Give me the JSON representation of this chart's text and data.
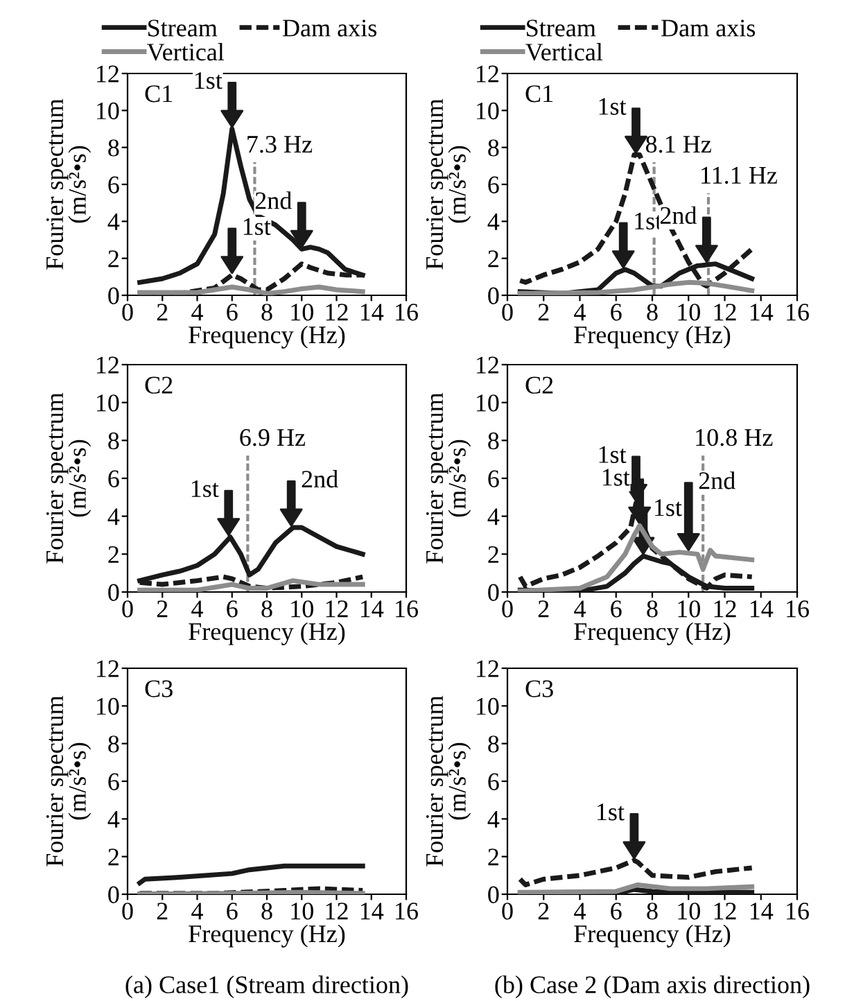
{
  "chart_data": [
    {
      "type": "line",
      "title": "C1",
      "xlabel": "Frequency (Hz)",
      "ylabel": "Fourier spectrum\n(m/s²•s)",
      "xlim": [
        0,
        16
      ],
      "xticks": [
        0,
        2,
        4,
        6,
        8,
        10,
        12,
        14,
        16
      ],
      "ylim": [
        0,
        12
      ],
      "yticks": [
        0,
        2,
        4,
        6,
        8,
        10,
        12
      ],
      "grid": false,
      "legend": "top",
      "marker": "none",
      "series": [
        {
          "name": "Stream",
          "color": "#1a1a1a",
          "line_style": "solid",
          "x": [
            0.7,
            2,
            3,
            4,
            5,
            5.5,
            6,
            6.5,
            7,
            7.5,
            8.5,
            9.5,
            10,
            10.5,
            11,
            11.5,
            12.5,
            13.5
          ],
          "values": [
            0.7,
            0.9,
            1.2,
            1.7,
            3.3,
            5.5,
            9.0,
            7.0,
            5.2,
            4.3,
            3.8,
            3.0,
            2.5,
            2.6,
            2.5,
            2.3,
            1.4,
            1.1
          ]
        },
        {
          "name": "Dam axis",
          "color": "#1a1a1a",
          "line_style": "dashed",
          "x": [
            0.7,
            3,
            5,
            6,
            6.5,
            7.5,
            8,
            9,
            10,
            10.5,
            11.5,
            12.5,
            13.5
          ],
          "values": [
            0.1,
            0.1,
            0.4,
            1.1,
            0.9,
            0.3,
            0.3,
            0.9,
            1.7,
            1.5,
            1.2,
            1.1,
            1.1
          ]
        },
        {
          "name": "Vertical",
          "color": "#8c8c8c",
          "line_style": "solid",
          "x": [
            0.7,
            4,
            6,
            7,
            8,
            9,
            10,
            11,
            12,
            13.5
          ],
          "values": [
            0.15,
            0.15,
            0.45,
            0.3,
            0.1,
            0.2,
            0.35,
            0.45,
            0.3,
            0.2
          ]
        }
      ],
      "ref_lines": [
        {
          "axis": "x",
          "value": 7.3,
          "label": "7.3 Hz",
          "color": "#8c8c8c",
          "line_style": "dashed"
        }
      ],
      "annotations": [
        {
          "text": "1st",
          "x": 6,
          "y": 9.0
        },
        {
          "text": "1st",
          "x": 6,
          "y": 1.1
        },
        {
          "text": "2nd",
          "x": 10,
          "y": 2.5
        }
      ]
    },
    {
      "type": "line",
      "title": "C1",
      "xlabel": "Frequency (Hz)",
      "ylabel": "Fourier spectrum\n(m/s²•s)",
      "xlim": [
        0,
        16
      ],
      "xticks": [
        0,
        2,
        4,
        6,
        8,
        10,
        12,
        14,
        16
      ],
      "ylim": [
        0,
        12
      ],
      "yticks": [
        0,
        2,
        4,
        6,
        8,
        10,
        12
      ],
      "grid": false,
      "legend": "top",
      "marker": "none",
      "series": [
        {
          "name": "Stream",
          "color": "#1a1a1a",
          "line_style": "solid",
          "x": [
            0.7,
            3,
            5,
            6,
            6.5,
            7,
            8,
            8.5,
            9.5,
            10.5,
            11.5,
            12.5,
            13.5
          ],
          "values": [
            0.2,
            0.1,
            0.3,
            1.2,
            1.4,
            1.2,
            0.5,
            0.5,
            1.2,
            1.6,
            1.7,
            1.3,
            0.9
          ]
        },
        {
          "name": "Dam axis",
          "color": "#1a1a1a",
          "line_style": "dashed",
          "x": [
            0.7,
            1,
            2,
            3,
            4,
            5,
            6,
            6.5,
            7,
            7.3,
            8,
            9,
            10,
            10.8,
            11,
            12,
            13.5
          ],
          "values": [
            0.8,
            0.7,
            1.1,
            1.4,
            1.8,
            2.5,
            4.0,
            5.5,
            7.6,
            7.6,
            6.0,
            3.7,
            1.8,
            0.6,
            0.5,
            1.2,
            2.5
          ]
        },
        {
          "name": "Vertical",
          "color": "#8c8c8c",
          "line_style": "solid",
          "x": [
            0.7,
            5,
            7,
            9,
            10,
            11,
            12,
            13.5
          ],
          "values": [
            0.1,
            0.15,
            0.3,
            0.6,
            0.7,
            0.65,
            0.5,
            0.25
          ]
        }
      ],
      "ref_lines": [
        {
          "axis": "x",
          "value": 8.1,
          "label": "8.1 Hz",
          "color": "#8c8c8c",
          "line_style": "dashed"
        },
        {
          "axis": "x",
          "value": 11.1,
          "label": "11.1 Hz",
          "color": "#8c8c8c",
          "line_style": "dashed"
        }
      ],
      "annotations": [
        {
          "text": "1st",
          "x": 7.1,
          "y": 7.6
        },
        {
          "text": "1st",
          "x": 6.4,
          "y": 1.4
        },
        {
          "text": "2nd",
          "x": 11,
          "y": 1.7
        }
      ]
    },
    {
      "type": "line",
      "title": "C2",
      "xlabel": "Frequency (Hz)",
      "ylabel": "Fourier spectrum\n(m/s²•s)",
      "xlim": [
        0,
        16
      ],
      "xticks": [
        0,
        2,
        4,
        6,
        8,
        10,
        12,
        14,
        16
      ],
      "ylim": [
        0,
        12
      ],
      "yticks": [
        0,
        2,
        4,
        6,
        8,
        10,
        12
      ],
      "grid": false,
      "marker": "none",
      "series": [
        {
          "color": "#1a1a1a",
          "line_style": "solid",
          "x": [
            0.7,
            2,
            3,
            4,
            5,
            5.9,
            6.5,
            7,
            7.5,
            8.5,
            9.5,
            10,
            11,
            12,
            13.5
          ],
          "values": [
            0.6,
            0.9,
            1.1,
            1.4,
            2.0,
            2.9,
            2.0,
            0.9,
            1.2,
            2.6,
            3.4,
            3.4,
            2.9,
            2.4,
            2.0
          ]
        },
        {
          "color": "#1a1a1a",
          "line_style": "dashed",
          "x": [
            0.7,
            2,
            4,
            5.5,
            6,
            7,
            8,
            10,
            12,
            13.5
          ],
          "values": [
            0.5,
            0.4,
            0.6,
            0.8,
            0.7,
            0.3,
            0.2,
            0.3,
            0.5,
            0.8
          ]
        },
        {
          "color": "#8c8c8c",
          "line_style": "solid",
          "x": [
            0.7,
            4,
            6,
            7,
            8,
            9.5,
            11,
            13.5
          ],
          "values": [
            0.1,
            0.1,
            0.4,
            0.2,
            0.2,
            0.6,
            0.4,
            0.4
          ]
        }
      ],
      "ref_lines": [
        {
          "axis": "x",
          "value": 6.9,
          "label": "6.9 Hz",
          "color": "#8c8c8c",
          "line_style": "dashed"
        }
      ],
      "annotations": [
        {
          "text": "1st",
          "x": 5.8,
          "y": 2.9
        },
        {
          "text": "2nd",
          "x": 9.4,
          "y": 3.4
        }
      ]
    },
    {
      "type": "line",
      "title": "C2",
      "xlabel": "Frequency (Hz)",
      "ylabel": "Fourier spectrum\n(m/s²•s)",
      "xlim": [
        0,
        16
      ],
      "xticks": [
        0,
        2,
        4,
        6,
        8,
        10,
        12,
        14,
        16
      ],
      "ylim": [
        0,
        12
      ],
      "yticks": [
        0,
        2,
        4,
        6,
        8,
        10,
        12
      ],
      "grid": false,
      "marker": "none",
      "series": [
        {
          "color": "#1a1a1a",
          "line_style": "solid",
          "x": [
            0.7,
            4,
            5.5,
            6.5,
            7,
            7.5,
            8.5,
            9,
            10,
            11,
            12,
            13.5
          ],
          "values": [
            0.1,
            0.05,
            0.3,
            1.0,
            1.5,
            1.9,
            1.6,
            1.5,
            0.8,
            0.3,
            0.2,
            0.2
          ]
        },
        {
          "color": "#1a1a1a",
          "line_style": "dashed",
          "x": [
            0.7,
            1,
            2,
            3,
            4,
            5,
            6,
            6.8,
            7.1,
            7.3,
            8,
            9,
            10,
            11,
            11.5,
            12,
            13.5
          ],
          "values": [
            0.8,
            0.3,
            0.7,
            0.9,
            1.3,
            1.9,
            2.6,
            3.4,
            4.7,
            4.0,
            2.3,
            1.5,
            0.7,
            0.2,
            0.7,
            0.9,
            0.8
          ]
        },
        {
          "color": "#8c8c8c",
          "line_style": "solid",
          "x": [
            0.7,
            4,
            5.5,
            6.5,
            7,
            7.3,
            8,
            8.5,
            9.5,
            10.5,
            10.8,
            11.2,
            11.5,
            13.5
          ],
          "values": [
            0.05,
            0.2,
            0.8,
            2.0,
            3.0,
            3.5,
            2.4,
            2.0,
            2.1,
            2.0,
            1.2,
            2.2,
            1.9,
            1.7
          ]
        }
      ],
      "ref_lines": [
        {
          "axis": "x",
          "value": 10.8,
          "label": "10.8 Hz",
          "color": "#8c8c8c",
          "line_style": "dashed"
        }
      ],
      "annotations": [
        {
          "text": "1st",
          "x": 7.1,
          "y": 4.7
        },
        {
          "text": "1st",
          "x": 7.5,
          "y": 1.9
        },
        {
          "text": "1st",
          "x": 7.3,
          "y": 3.5
        },
        {
          "text": "2nd",
          "x": 10,
          "y": 2.1
        }
      ]
    },
    {
      "type": "line",
      "title": "C3",
      "xlabel": "Frequency (Hz)",
      "ylabel": "Fourier spectrum\n(m/s²•s)",
      "xlim": [
        0,
        16
      ],
      "xticks": [
        0,
        2,
        4,
        6,
        8,
        10,
        12,
        14,
        16
      ],
      "ylim": [
        0,
        12
      ],
      "yticks": [
        0,
        2,
        4,
        6,
        8,
        10,
        12
      ],
      "grid": false,
      "marker": "none",
      "series": [
        {
          "color": "#1a1a1a",
          "line_style": "solid",
          "x": [
            0.7,
            1,
            3,
            6,
            7,
            9,
            11,
            13.5
          ],
          "values": [
            0.6,
            0.8,
            0.9,
            1.1,
            1.3,
            1.5,
            1.5,
            1.5
          ]
        },
        {
          "color": "#1a1a1a",
          "line_style": "dashed",
          "x": [
            0.7,
            5,
            9,
            11,
            13.5
          ],
          "values": [
            0.05,
            0.05,
            0.2,
            0.3,
            0.2
          ]
        },
        {
          "color": "#8c8c8c",
          "line_style": "solid",
          "x": [
            0.7,
            6,
            10,
            13.5
          ],
          "values": [
            0.02,
            0.05,
            0.1,
            0.05
          ]
        }
      ],
      "annotations": [
        "(a) Case1 (Stream direction)"
      ]
    },
    {
      "type": "line",
      "title": "C3",
      "xlabel": "Frequency (Hz)",
      "ylabel": "Fourier spectrum\n(m/s²•s)",
      "xlim": [
        0,
        16
      ],
      "xticks": [
        0,
        2,
        4,
        6,
        8,
        10,
        12,
        14,
        16
      ],
      "ylim": [
        0,
        12
      ],
      "yticks": [
        0,
        2,
        4,
        6,
        8,
        10,
        12
      ],
      "grid": false,
      "marker": "none",
      "series": [
        {
          "color": "#1a1a1a",
          "line_style": "solid",
          "x": [
            0.7,
            6,
            7,
            8,
            13.5
          ],
          "values": [
            0.05,
            0.05,
            0.25,
            0.15,
            0.1
          ]
        },
        {
          "color": "#1a1a1a",
          "line_style": "dashed",
          "x": [
            0.7,
            1,
            2,
            4,
            6,
            7,
            7.2,
            8,
            10,
            11.5,
            13.5
          ],
          "values": [
            0.8,
            0.5,
            0.8,
            1.0,
            1.4,
            1.8,
            1.7,
            1.0,
            0.9,
            1.2,
            1.4
          ]
        },
        {
          "color": "#8c8c8c",
          "line_style": "solid",
          "x": [
            0.7,
            6,
            7.2,
            9,
            11,
            13.5
          ],
          "values": [
            0.1,
            0.15,
            0.5,
            0.3,
            0.3,
            0.4
          ]
        }
      ],
      "annotations": [
        {
          "text": "1st",
          "x": 7,
          "y": 1.8
        },
        "(b) Case 2 (Dam axis direction)"
      ]
    }
  ]
}
